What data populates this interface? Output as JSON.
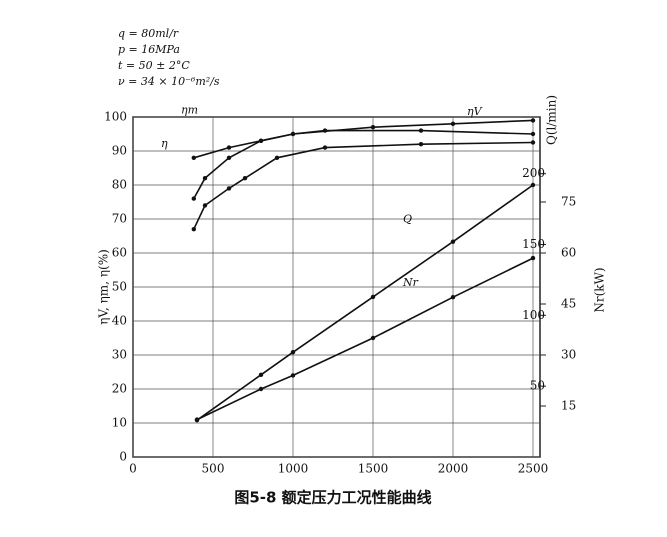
{
  "chart_data": {
    "type": "line",
    "annotations": [
      "q = 80ml/r",
      "p = 16MPa",
      "t = 50 ± 2°C",
      "ν = 34 × 10⁻⁶m²/s"
    ],
    "caption": "图5-8  额定压力工况性能曲线",
    "ylabel": "ηV, ηm, η(%)",
    "y2label": "Q(l/min)",
    "y3label": "Nr(kW)",
    "xlim": [
      0,
      2500
    ],
    "xticks": [
      0,
      500,
      1000,
      1500,
      2000,
      2500
    ],
    "ylim": [
      0,
      100
    ],
    "yticks": [
      0,
      10,
      20,
      30,
      40,
      50,
      60,
      70,
      80,
      90,
      100
    ],
    "y2lim": [
      0,
      240
    ],
    "y2ticks": [
      50,
      100,
      150,
      200
    ],
    "y3lim": [
      0,
      100
    ],
    "y3ticks": [
      15,
      30,
      45,
      60,
      75
    ],
    "grid": true,
    "series": [
      {
        "name": "ηV",
        "color": "#111",
        "x": [
          380,
          600,
          800,
          1000,
          1500,
          2000,
          2500
        ],
        "values": [
          88,
          91,
          93,
          95,
          97,
          98,
          99
        ]
      },
      {
        "name": "ηm",
        "color": "#111",
        "x": [
          380,
          450,
          600,
          800,
          1000,
          1200,
          1800,
          2500
        ],
        "values": [
          76,
          82,
          88,
          93,
          95,
          96,
          96,
          95
        ]
      },
      {
        "name": "η",
        "color": "#111",
        "x": [
          380,
          450,
          600,
          700,
          900,
          1200,
          1800,
          2500
        ],
        "values": [
          67,
          74,
          79,
          82,
          88,
          91,
          92,
          92.5
        ]
      },
      {
        "name": "Q",
        "color": "#111",
        "axis": "y2",
        "x": [
          400,
          800,
          1000,
          1500,
          2000,
          2500
        ],
        "values": [
          26,
          58,
          74,
          113,
          152,
          192
        ]
      },
      {
        "name": "Nr",
        "color": "#111",
        "axis": "y3",
        "x": [
          400,
          800,
          1000,
          1500,
          2000,
          2500
        ],
        "values": [
          11,
          20,
          24,
          35,
          47,
          58.5
        ]
      }
    ]
  }
}
